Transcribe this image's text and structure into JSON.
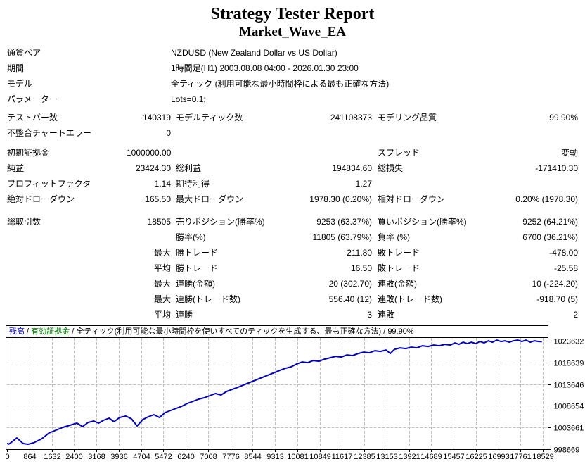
{
  "report": {
    "title": "Strategy Tester Report",
    "subtitle": "Market_Wave_EA",
    "info_rows": [
      {
        "label": "通貨ペア",
        "value": "NZDUSD (New Zealand Dollar vs US Dollar)"
      },
      {
        "label": "期間",
        "value": "1時間足(H1) 2003.08.08 04:00 - 2026.01.30 23:00"
      },
      {
        "label": "モデル",
        "value": "全ティック (利用可能な最小時間枠による最も正確な方法)"
      },
      {
        "label": "パラメーター",
        "value": "Lots=0.1;"
      }
    ],
    "stat_rows": [
      {
        "gap": "gap4",
        "c1": "テストバー数",
        "c2": "140319",
        "c3": "モデルティック数",
        "c4": "241108373",
        "c5": "モデリング品質",
        "c6": "99.90%"
      },
      {
        "gap": "",
        "c1": "不整合チャートエラー",
        "c2": "0",
        "c3": "",
        "c4": "",
        "c5": "",
        "c6": ""
      },
      {
        "gap": "gap6",
        "c1": "初期証拠金",
        "c2": "1000000.00",
        "c3": "",
        "c4": "",
        "c5": "スプレッド",
        "c6": "変動"
      },
      {
        "gap": "",
        "c1": "純益",
        "c2": "23424.30",
        "c3": "総利益",
        "c4": "194834.60",
        "c5": "総損失",
        "c6": "-171410.30"
      },
      {
        "gap": "",
        "c1": "プロフィットファクタ",
        "c2": "1.14",
        "c3": "期待利得",
        "c4": "1.27",
        "c5": "",
        "c6": ""
      },
      {
        "gap": "",
        "c1": "絶対ドローダウン",
        "c2": "165.50",
        "c3": "最大ドローダウン",
        "c4": "1978.30 (0.20%)",
        "c5": "相対ドローダウン",
        "c6": "0.20% (1978.30)"
      },
      {
        "gap": "gap10",
        "c1": "総取引数",
        "c2": "18505",
        "c3": "売りポジション(勝率%)",
        "c4": "9253 (63.37%)",
        "c5": "買いポジション(勝率%)",
        "c6": "9252 (64.21%)"
      },
      {
        "gap": "",
        "c1": "",
        "c2": "",
        "c3": "勝率(%)",
        "c4": "11805 (63.79%)",
        "c5": "負率 (%)",
        "c6": "6700 (36.21%)"
      },
      {
        "gap": "",
        "c1": "",
        "c2": "最大",
        "c3": "勝トレード",
        "c4": "211.80",
        "c5": "敗トレード",
        "c6": "-478.00"
      },
      {
        "gap": "",
        "c1": "",
        "c2": "平均",
        "c3": "勝トレード",
        "c4": "16.50",
        "c5": "敗トレード",
        "c6": "-25.58"
      },
      {
        "gap": "",
        "c1": "",
        "c2": "最大",
        "c3": "連勝(金額)",
        "c4": "20 (302.70)",
        "c5": "連敗(金額)",
        "c6": "10 (-224.20)"
      },
      {
        "gap": "",
        "c1": "",
        "c2": "最大",
        "c3": "連勝(トレード数)",
        "c4": "556.40 (12)",
        "c5": "連敗(トレード数)",
        "c6": "-918.70 (5)"
      },
      {
        "gap": "",
        "c1": "",
        "c2": "平均",
        "c3": "連勝",
        "c4": "3",
        "c5": "連敗",
        "c6": "2"
      }
    ]
  },
  "chart_data": {
    "type": "line",
    "legend": [
      {
        "text": "残高",
        "color": "#0000C8"
      },
      {
        "text": "有効証拠金",
        "color": "#008000"
      },
      {
        "text": "全ティック(利用可能な最小時間枠を使いすべてのティックを生成する、最も正確な方法)",
        "color": "#000000"
      },
      {
        "text": "99.90%",
        "color": "#000000"
      }
    ],
    "legend_separator": " / ",
    "line_color": "#0000B4",
    "grid_color": "#c0c0c0",
    "x_ticks": [
      0,
      864,
      1632,
      2400,
      3168,
      3936,
      4704,
      5472,
      6240,
      7008,
      7776,
      8544,
      9313,
      10081,
      10849,
      11617,
      12385,
      13153,
      13921,
      14689,
      15457,
      16225,
      16993,
      17761,
      18529
    ],
    "y_ticks": [
      1023632,
      1018639,
      1013646,
      1008654,
      1003661,
      998669
    ],
    "y_max": 1023632,
    "y_min": 998669,
    "x_max_bar": 18529,
    "series": [
      {
        "name": "残高",
        "points": [
          [
            0,
            1000000
          ],
          [
            60,
            999834
          ],
          [
            121,
            1000100
          ],
          [
            339,
            1001261
          ],
          [
            556,
            999965
          ],
          [
            726,
            999803
          ],
          [
            919,
            1000127
          ],
          [
            1209,
            1001099
          ],
          [
            1451,
            1002395
          ],
          [
            1693,
            1003043
          ],
          [
            1935,
            1003691
          ],
          [
            2177,
            1004177
          ],
          [
            2419,
            1004663
          ],
          [
            2612,
            1003853
          ],
          [
            2805,
            1004825
          ],
          [
            2999,
            1005149
          ],
          [
            3168,
            1004663
          ],
          [
            3337,
            1005311
          ],
          [
            3531,
            1005797
          ],
          [
            3700,
            1004987
          ],
          [
            3894,
            1005959
          ],
          [
            4112,
            1006283
          ],
          [
            4305,
            1005635
          ],
          [
            4499,
            1004015
          ],
          [
            4692,
            1005473
          ],
          [
            4886,
            1006121
          ],
          [
            5079,
            1006607
          ],
          [
            5273,
            1005959
          ],
          [
            5466,
            1007093
          ],
          [
            5660,
            1007579
          ],
          [
            5853,
            1008065
          ],
          [
            6047,
            1008551
          ],
          [
            6240,
            1009199
          ],
          [
            6434,
            1009685
          ],
          [
            6627,
            1010171
          ],
          [
            6821,
            1010495
          ],
          [
            7014,
            1010981
          ],
          [
            7208,
            1011467
          ],
          [
            7401,
            1011143
          ],
          [
            7595,
            1011953
          ],
          [
            7788,
            1012439
          ],
          [
            7982,
            1012925
          ],
          [
            8224,
            1013573
          ],
          [
            8466,
            1014221
          ],
          [
            8708,
            1014869
          ],
          [
            8950,
            1015517
          ],
          [
            9192,
            1016165
          ],
          [
            9434,
            1016813
          ],
          [
            9627,
            1017299
          ],
          [
            9821,
            1017623
          ],
          [
            10014,
            1018271
          ],
          [
            10208,
            1018757
          ],
          [
            10401,
            1018595
          ],
          [
            10595,
            1019081
          ],
          [
            10788,
            1018919
          ],
          [
            10982,
            1019405
          ],
          [
            11175,
            1019729
          ],
          [
            11369,
            1020053
          ],
          [
            11562,
            1019891
          ],
          [
            11756,
            1020377
          ],
          [
            11949,
            1020215
          ],
          [
            12143,
            1020701
          ],
          [
            12336,
            1021025
          ],
          [
            12530,
            1020863
          ],
          [
            12723,
            1021349
          ],
          [
            12917,
            1021187
          ],
          [
            13110,
            1021511
          ],
          [
            13256,
            1020701
          ],
          [
            13401,
            1021673
          ],
          [
            13595,
            1021997
          ],
          [
            13788,
            1021835
          ],
          [
            13982,
            1022159
          ],
          [
            14175,
            1021997
          ],
          [
            14369,
            1022483
          ],
          [
            14562,
            1022321
          ],
          [
            14756,
            1022645
          ],
          [
            14949,
            1022483
          ],
          [
            15143,
            1022807
          ],
          [
            15336,
            1022645
          ],
          [
            15482,
            1023131
          ],
          [
            15627,
            1022807
          ],
          [
            15772,
            1023293
          ],
          [
            15917,
            1022969
          ],
          [
            16063,
            1023293
          ],
          [
            16208,
            1022969
          ],
          [
            16353,
            1023455
          ],
          [
            16498,
            1023131
          ],
          [
            16644,
            1023617
          ],
          [
            16789,
            1023293
          ],
          [
            16934,
            1023779
          ],
          [
            17079,
            1023455
          ],
          [
            17225,
            1023617
          ],
          [
            17370,
            1023293
          ],
          [
            17515,
            1023617
          ],
          [
            17660,
            1023779
          ],
          [
            17806,
            1023455
          ],
          [
            17951,
            1023779
          ],
          [
            18096,
            1023293
          ],
          [
            18241,
            1023617
          ],
          [
            18387,
            1023455
          ],
          [
            18500,
            1023424
          ]
        ]
      }
    ]
  }
}
